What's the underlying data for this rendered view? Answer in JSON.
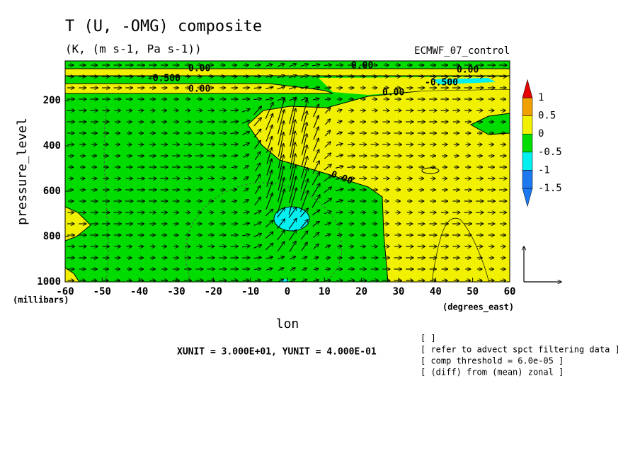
{
  "chart_data": {
    "type": "contour",
    "title": "T (U, -OMG) composite",
    "subtitle": "(K, (m s-1, Pa s-1))",
    "model_label": "ECMWF_07_control",
    "x_label": "lon",
    "y_label": "pressure_level",
    "x_unit_label": "(degrees_east)",
    "y_unit_label": "(millibars)",
    "xlim": [
      -60,
      60
    ],
    "xticks": [
      -60,
      -50,
      -40,
      -30,
      -20,
      -10,
      0,
      10,
      20,
      30,
      40,
      50,
      60
    ],
    "ylim": [
      1000,
      25
    ],
    "yticks": [
      200,
      400,
      600,
      800,
      1000
    ],
    "colorbar": {
      "levels": [
        -1.5,
        -1,
        -0.5,
        0,
        0.5,
        1
      ],
      "colors": [
        "#1e78f0",
        "#1e78f0",
        "#00f0f0",
        "#00dc00",
        "#f0f000",
        "#f0a000",
        "#e60000"
      ]
    },
    "contour_labels": [
      "0.00",
      "-0.500",
      "0.00",
      "0.00",
      "0.00",
      "-0.500",
      "0.00",
      "0.00"
    ],
    "vector_units": "XUNIT = 3.000E+01, YUNIT = 4.000E-01",
    "notes": [
      "[  ]",
      "[ refer to advect spct filtering data ]",
      "[ comp threshold = 6.0e-05 ]",
      "[ (diff) from (mean) zonal ]"
    ]
  }
}
